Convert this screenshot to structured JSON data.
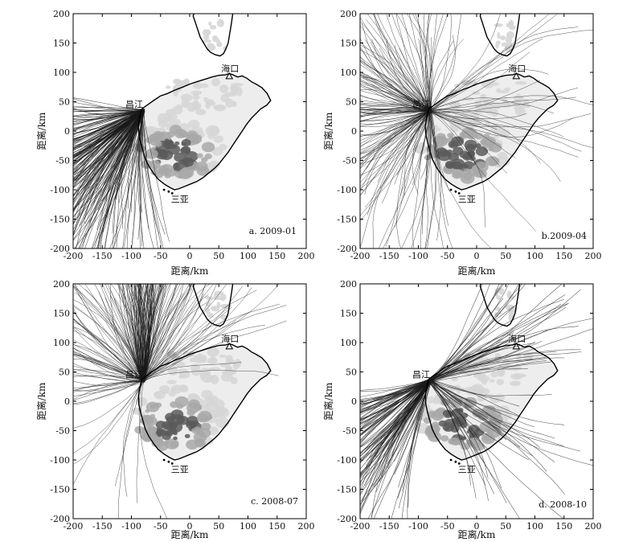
{
  "figure": {
    "axis": {
      "xlabel": "距离/km",
      "ylabel": "距离/km",
      "ticks": [
        -200,
        -150,
        -100,
        -50,
        0,
        50,
        100,
        150,
        200
      ]
    },
    "places": {
      "haikou": "海口",
      "changjiang": "昌江",
      "sanya": "三亚"
    },
    "colors": {
      "trajectory": "#1a1a1a",
      "coast": "#000000",
      "terrain_light": "#d6d6d6",
      "terrain_mid": "#a8a8a8",
      "terrain_dark": "#5a5a5a"
    }
  },
  "chart_data": [
    {
      "type": "line",
      "label": "a. 2009-01",
      "xlim": [
        -200,
        200
      ],
      "ylim": [
        -200,
        200
      ],
      "xlabel": "距离/km",
      "ylabel": "距离/km",
      "origin": [
        -80,
        35
      ],
      "dominant_direction": "southwest",
      "series": []
    },
    {
      "type": "line",
      "label": "b.2009-04",
      "xlim": [
        -200,
        200
      ],
      "ylim": [
        -200,
        200
      ],
      "xlabel": "距离/km",
      "ylabel": "距离/km",
      "origin": [
        -80,
        35
      ],
      "dominant_direction": "all directions, mostly west and north",
      "series": []
    },
    {
      "type": "line",
      "label": "c. 2008-07",
      "xlim": [
        -200,
        200
      ],
      "ylim": [
        -200,
        200
      ],
      "xlabel": "距离/km",
      "ylabel": "距离/km",
      "origin": [
        -80,
        35
      ],
      "dominant_direction": "north",
      "series": []
    },
    {
      "type": "line",
      "label": "d. 2008-10",
      "xlim": [
        -200,
        200
      ],
      "ylim": [
        -200,
        200
      ],
      "xlabel": "距离/km",
      "ylabel": "距离/km",
      "origin": [
        -80,
        35
      ],
      "dominant_direction": "southwest and northeast",
      "series": []
    }
  ]
}
